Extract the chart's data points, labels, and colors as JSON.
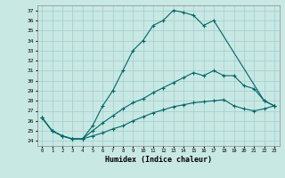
{
  "xlabel": "Humidex (Indice chaleur)",
  "xlim": [
    -0.5,
    23.5
  ],
  "ylim": [
    23.5,
    37.5
  ],
  "xticks": [
    0,
    1,
    2,
    3,
    4,
    5,
    6,
    7,
    8,
    9,
    10,
    11,
    12,
    13,
    14,
    15,
    16,
    17,
    18,
    19,
    20,
    21,
    22,
    23
  ],
  "yticks": [
    24,
    25,
    26,
    27,
    28,
    29,
    30,
    31,
    32,
    33,
    34,
    35,
    36,
    37
  ],
  "bg_color": "#c8e8e4",
  "line_color": "#006666",
  "grid_color": "#a0cccc",
  "line1_x": [
    0,
    1,
    2,
    3,
    4,
    5,
    6,
    7,
    8,
    9,
    10,
    11,
    12,
    13,
    14,
    15,
    16,
    17,
    22,
    23
  ],
  "line1_y": [
    26.3,
    25.0,
    24.5,
    24.2,
    24.2,
    25.5,
    27.5,
    29.0,
    31.0,
    33.0,
    34.0,
    35.5,
    36.0,
    37.0,
    36.8,
    36.5,
    35.5,
    36.0,
    28.0,
    27.5
  ],
  "line2_x": [
    0,
    1,
    2,
    3,
    4,
    5,
    6,
    7,
    8,
    9,
    10,
    11,
    12,
    13,
    14,
    15,
    16,
    17,
    18,
    19,
    20,
    21,
    22,
    23
  ],
  "line2_y": [
    26.3,
    25.0,
    24.5,
    24.2,
    24.2,
    25.0,
    25.8,
    26.5,
    27.2,
    27.8,
    28.2,
    28.8,
    29.3,
    29.8,
    30.3,
    30.8,
    30.5,
    31.0,
    30.5,
    30.5,
    29.5,
    29.2,
    28.0,
    27.5
  ],
  "line3_x": [
    0,
    1,
    2,
    3,
    4,
    5,
    6,
    7,
    8,
    9,
    10,
    11,
    12,
    13,
    14,
    15,
    16,
    17,
    18,
    19,
    20,
    21,
    22,
    23
  ],
  "line3_y": [
    26.3,
    25.0,
    24.5,
    24.2,
    24.2,
    24.5,
    24.8,
    25.2,
    25.5,
    26.0,
    26.4,
    26.8,
    27.1,
    27.4,
    27.6,
    27.8,
    27.9,
    28.0,
    28.1,
    27.5,
    27.2,
    27.0,
    27.2,
    27.5
  ]
}
